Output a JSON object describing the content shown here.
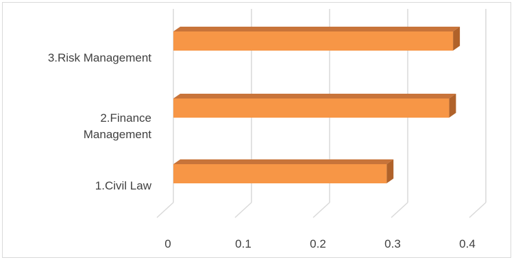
{
  "chart_data": {
    "type": "bar",
    "orientation": "horizontal",
    "style": "3d",
    "categories": [
      "1.Civil Law",
      "2.Finance Management",
      "3.Risk Management"
    ],
    "category_label_lines": [
      [
        "1.Civil Law"
      ],
      [
        "2.Finance",
        "Management"
      ],
      [
        "3.Risk Management"
      ]
    ],
    "values": [
      0.28,
      0.36,
      0.365
    ],
    "xlim": [
      0,
      0.4
    ],
    "xticks": [
      "0",
      "0.1",
      "0.2",
      "0.3",
      "0.4"
    ],
    "grid": true,
    "legend": "none",
    "colors": {
      "bar_front": "#f79646",
      "bar_top": "#c8743a",
      "bar_side": "#b0622a",
      "grid": "#d9d9d9",
      "text": "#404040"
    }
  }
}
